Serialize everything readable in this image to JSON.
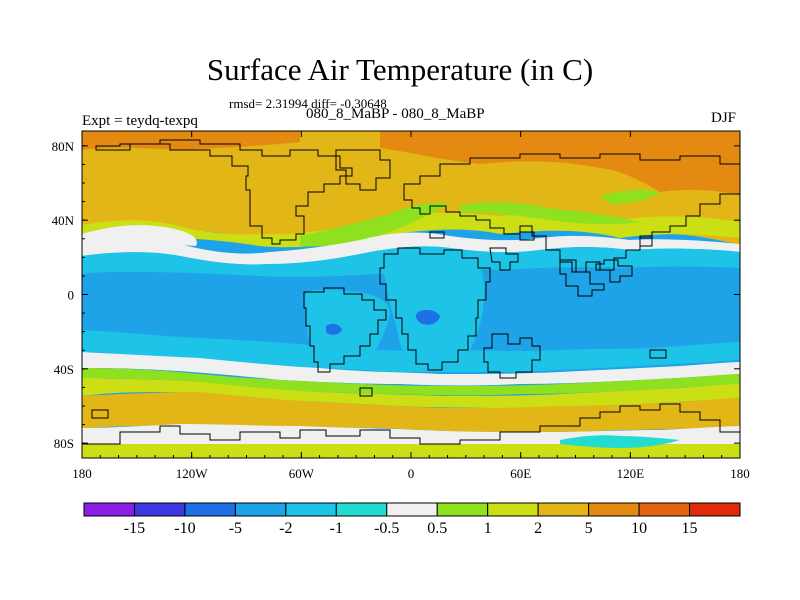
{
  "title": "Surface Air Temperature (in C)",
  "stats_line": "rmsd= 2.31994 diff= -0.30648",
  "cases_line": "080_8_MaBP - 080_8_MaBP",
  "expt_line": "Expt = teydq-texpq",
  "season": "DJF",
  "lon_ticks": [
    {
      "lon": -180,
      "label": "180"
    },
    {
      "lon": -120,
      "label": "120W"
    },
    {
      "lon": -60,
      "label": "60W"
    },
    {
      "lon": 0,
      "label": "0"
    },
    {
      "lon": 60,
      "label": "60E"
    },
    {
      "lon": 120,
      "label": "120E"
    },
    {
      "lon": 180,
      "label": "180"
    }
  ],
  "lat_ticks": [
    {
      "lat": 80,
      "label": "80N"
    },
    {
      "lat": 40,
      "label": "40N"
    },
    {
      "lat": 0,
      "label": "0"
    },
    {
      "lat": -40,
      "label": "40S"
    },
    {
      "lat": -80,
      "label": "80S"
    }
  ],
  "colorbar": {
    "boxes": [
      {
        "color": "#8a1fe8"
      },
      {
        "color": "#3c37e0"
      },
      {
        "color": "#1f6fe6"
      },
      {
        "color": "#1ea2e8"
      },
      {
        "color": "#1ec3e8"
      },
      {
        "color": "#22dcd2"
      },
      {
        "color": "#f0f0f0"
      },
      {
        "color": "#8fe01e"
      },
      {
        "color": "#ccdf14"
      },
      {
        "color": "#e2b616"
      },
      {
        "color": "#e48a10"
      },
      {
        "color": "#e2640e"
      },
      {
        "color": "#e02a0a"
      }
    ],
    "labels": [
      "-15",
      "-10",
      "-5",
      "-2",
      "-1",
      "-0.5",
      "0.5",
      "1",
      "2",
      "5",
      "10",
      "15"
    ]
  },
  "palette": {
    "deep_orange": "#e48a10",
    "orange": "#e2b616",
    "yellow_green": "#ccdf14",
    "green": "#8fe01e",
    "white": "#f0f0f0",
    "cyan": "#22dcd2",
    "light_blue": "#1ec3e8",
    "blue": "#1ea2e8",
    "dark_blue": "#1f6fe6"
  }
}
